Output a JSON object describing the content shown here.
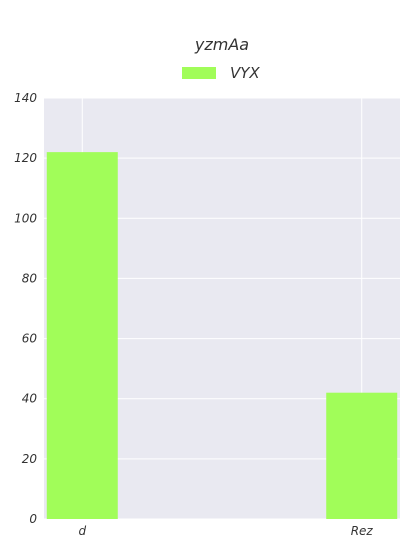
{
  "chart_data": {
    "type": "bar",
    "title": "yzmAa",
    "categories": [
      "d",
      "Rez"
    ],
    "series": [
      {
        "name": "VYX",
        "values": [
          122,
          42
        ]
      }
    ],
    "ylim": [
      0,
      140
    ],
    "yticks": [
      0,
      20,
      40,
      60,
      80,
      100,
      120,
      140
    ],
    "grid": true,
    "legend": "top-center",
    "colors": {
      "bar": "#a1fd59",
      "plot_bg": "#e9e9f1",
      "grid": "#ffffff",
      "text": "#333333"
    }
  }
}
